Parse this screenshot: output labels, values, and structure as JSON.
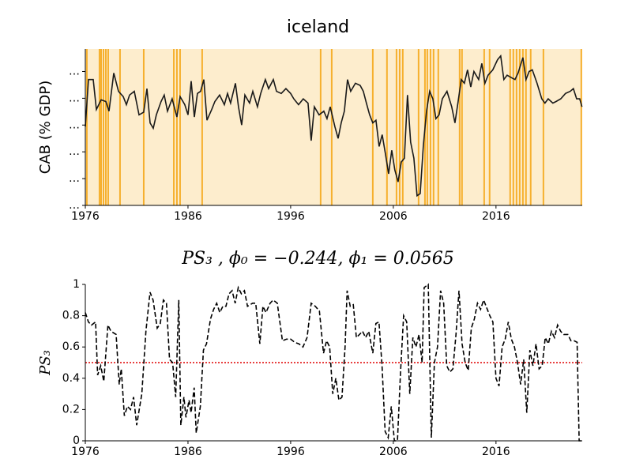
{
  "chart_data": [
    {
      "type": "line",
      "title": "iceland",
      "ylabel": "CAB (% GDP)",
      "color": "#1a1a1a",
      "line_style": "solid",
      "background": "#fdedcd",
      "x": [
        1976.0,
        1976.31,
        1976.77,
        1977.08,
        1977.54,
        1978.0,
        1978.31,
        1978.77,
        1979.23,
        1979.69,
        1980.0,
        1980.31,
        1980.77,
        1981.23,
        1981.69,
        1982.0,
        1982.31,
        1982.62,
        1982.92,
        1983.38,
        1983.69,
        1984.0,
        1984.46,
        1984.92,
        1985.23,
        1985.69,
        1986.0,
        1986.31,
        1986.62,
        1986.92,
        1987.23,
        1987.54,
        1987.85,
        1988.31,
        1988.62,
        1989.08,
        1989.54,
        1989.85,
        1990.15,
        1990.62,
        1990.92,
        1991.23,
        1991.54,
        1992.0,
        1992.31,
        1992.77,
        1993.08,
        1993.54,
        1993.85,
        1994.31,
        1994.62,
        1995.08,
        1995.54,
        1996.0,
        1996.31,
        1996.77,
        1997.23,
        1997.69,
        1998.0,
        1998.31,
        1998.77,
        1999.23,
        1999.54,
        1999.85,
        2000.31,
        2000.62,
        2000.92,
        2001.23,
        2001.54,
        2001.85,
        2002.31,
        2002.77,
        2003.08,
        2003.38,
        2003.69,
        2004.0,
        2004.31,
        2004.62,
        2004.92,
        2005.23,
        2005.54,
        2005.85,
        2006.15,
        2006.46,
        2006.77,
        2007.08,
        2007.38,
        2007.69,
        2008.0,
        2008.31,
        2008.62,
        2008.92,
        2009.23,
        2009.54,
        2009.85,
        2010.15,
        2010.46,
        2010.77,
        2011.23,
        2011.69,
        2012.0,
        2012.31,
        2012.62,
        2012.92,
        2013.23,
        2013.54,
        2013.85,
        2014.31,
        2014.62,
        2014.92,
        2015.23,
        2015.69,
        2016.15,
        2016.46,
        2016.77,
        2017.08,
        2017.54,
        2017.85,
        2018.15,
        2018.62,
        2018.92,
        2019.23,
        2019.54,
        2020.0,
        2020.46,
        2020.77,
        2021.08,
        2021.54,
        2021.85,
        2022.31,
        2022.77,
        2023.23,
        2023.54,
        2023.85,
        2024.15,
        2024.38
      ],
      "values": [
        -10.3,
        -1.5,
        -1.5,
        -7.1,
        -5.3,
        -5.6,
        -7.4,
        -0.3,
        -3.7,
        -4.7,
        -6.2,
        -4.4,
        -3.7,
        -8.1,
        -7.6,
        -3.2,
        -9.6,
        -10.6,
        -8.1,
        -5.6,
        -4.4,
        -7.4,
        -5.1,
        -8.5,
        -4.7,
        -6.2,
        -8.1,
        -1.8,
        -8.5,
        -4.1,
        -3.7,
        -1.5,
        -9.1,
        -7.1,
        -5.6,
        -4.4,
        -6.2,
        -4.1,
        -5.9,
        -2.2,
        -6.6,
        -10.0,
        -4.4,
        -5.9,
        -3.7,
        -6.6,
        -4.1,
        -1.5,
        -3.2,
        -1.5,
        -3.7,
        -4.1,
        -3.2,
        -4.1,
        -5.1,
        -6.2,
        -5.1,
        -5.9,
        -12.9,
        -6.6,
        -8.1,
        -7.4,
        -8.8,
        -6.6,
        -10.3,
        -12.5,
        -9.6,
        -7.4,
        -1.5,
        -3.7,
        -2.2,
        -2.6,
        -3.7,
        -5.9,
        -8.1,
        -9.6,
        -9.1,
        -14.0,
        -11.8,
        -15.4,
        -19.1,
        -14.7,
        -18.4,
        -20.6,
        -16.9,
        -16.2,
        -4.4,
        -13.2,
        -16.2,
        -23.2,
        -22.8,
        -14.0,
        -7.4,
        -3.7,
        -5.1,
        -8.8,
        -8.1,
        -5.1,
        -3.7,
        -6.6,
        -9.6,
        -5.6,
        -1.5,
        -2.2,
        0.3,
        -2.9,
        0.0,
        -1.5,
        1.5,
        -2.2,
        -0.7,
        0.3,
        2.2,
        2.9,
        -1.5,
        -0.7,
        -1.2,
        -1.5,
        -0.3,
        2.6,
        -1.5,
        0.0,
        0.3,
        -2.2,
        -5.1,
        -5.9,
        -5.1,
        -5.9,
        -5.6,
        -5.1,
        -4.1,
        -3.7,
        -3.2,
        -5.1,
        -5.1,
        -6.6
      ],
      "vlines": {
        "color": "#f6b02e",
        "x": [
          1976.15,
          1977.38,
          1977.54,
          1977.77,
          1978.0,
          1978.23,
          1979.38,
          1981.69,
          1984.62,
          1984.92,
          1985.23,
          1987.38,
          1998.92,
          2000.0,
          2004.0,
          2005.38,
          2006.31,
          2006.62,
          2006.92,
          2008.46,
          2009.08,
          2009.31,
          2009.62,
          2009.92,
          2010.38,
          2012.46,
          2012.69,
          2014.85,
          2015.38,
          2017.38,
          2017.69,
          2018.0,
          2018.31,
          2018.62,
          2018.92,
          2019.38,
          2020.62,
          2024.31
        ]
      },
      "xlim": [
        1976,
        2024.4
      ],
      "xticks": [
        1976,
        1986,
        1996,
        2006,
        2016
      ],
      "ylim": [
        -25,
        4.2
      ],
      "yticks": [
        {
          "value": -25,
          "label": "…"
        },
        {
          "value": -20,
          "label": "…"
        },
        {
          "value": -15,
          "label": "…"
        },
        {
          "value": -10,
          "label": "…"
        },
        {
          "value": -5,
          "label": "…"
        },
        {
          "value": 0,
          "label": "…"
        }
      ]
    },
    {
      "type": "line",
      "title": "PS₃ , ϕ₀ = −0.244, ϕ₁ = 0.0565",
      "ylabel": "PS₃",
      "color": "#000000",
      "line_style": "dashed",
      "x": [
        1976.0,
        1976.3,
        1976.6,
        1977.0,
        1977.2,
        1977.5,
        1977.8,
        1978.2,
        1978.5,
        1979.0,
        1979.3,
        1979.5,
        1979.8,
        1980.1,
        1980.4,
        1980.7,
        1981.0,
        1981.5,
        1981.9,
        1982.3,
        1982.6,
        1983.0,
        1983.3,
        1983.6,
        1983.9,
        1984.2,
        1984.5,
        1984.8,
        1985.1,
        1985.3,
        1985.6,
        1985.8,
        1986.1,
        1986.3,
        1986.6,
        1986.8,
        1987.2,
        1987.5,
        1987.8,
        1988.2,
        1988.5,
        1988.8,
        1989.1,
        1989.4,
        1989.7,
        1990.0,
        1990.3,
        1990.6,
        1990.9,
        1991.2,
        1991.5,
        1991.8,
        1992.3,
        1992.6,
        1993.0,
        1993.3,
        1993.6,
        1994.0,
        1994.3,
        1994.7,
        1995.2,
        1995.6,
        1996.0,
        1996.4,
        1996.8,
        1997.2,
        1997.6,
        1998.0,
        1998.4,
        1998.8,
        1999.2,
        1999.5,
        1999.8,
        2000.1,
        2000.4,
        2000.7,
        2001.0,
        2001.3,
        2001.5,
        2001.8,
        2002.1,
        2002.4,
        2002.7,
        2003.0,
        2003.3,
        2003.6,
        2004.0,
        2004.3,
        2004.6,
        2004.9,
        2005.2,
        2005.5,
        2005.8,
        2006.1,
        2006.4,
        2006.7,
        2007.0,
        2007.3,
        2007.6,
        2007.9,
        2008.2,
        2008.5,
        2008.8,
        2009.0,
        2009.4,
        2009.7,
        2010.0,
        2010.3,
        2010.6,
        2010.9,
        2011.2,
        2011.5,
        2011.8,
        2012.1,
        2012.4,
        2012.7,
        2013.0,
        2013.3,
        2013.6,
        2013.9,
        2014.2,
        2014.5,
        2014.8,
        2015.1,
        2015.4,
        2015.7,
        2016.0,
        2016.3,
        2016.6,
        2016.9,
        2017.2,
        2017.5,
        2017.8,
        2018.1,
        2018.4,
        2018.7,
        2019.0,
        2019.3,
        2019.6,
        2019.9,
        2020.2,
        2020.5,
        2020.8,
        2021.1,
        2021.4,
        2021.7,
        2022.0,
        2022.3,
        2022.6,
        2023.0,
        2023.3,
        2023.6,
        2023.9,
        2024.1,
        2024.38
      ],
      "values": [
        0.82,
        0.76,
        0.74,
        0.76,
        0.42,
        0.48,
        0.38,
        0.74,
        0.7,
        0.68,
        0.36,
        0.46,
        0.16,
        0.22,
        0.2,
        0.28,
        0.1,
        0.3,
        0.7,
        0.95,
        0.9,
        0.72,
        0.75,
        0.9,
        0.88,
        0.52,
        0.5,
        0.28,
        0.9,
        0.1,
        0.28,
        0.15,
        0.26,
        0.18,
        0.34,
        0.05,
        0.22,
        0.58,
        0.62,
        0.78,
        0.84,
        0.88,
        0.82,
        0.86,
        0.86,
        0.94,
        0.96,
        0.88,
        0.98,
        0.94,
        0.96,
        0.86,
        0.88,
        0.88,
        0.62,
        0.86,
        0.82,
        0.88,
        0.9,
        0.88,
        0.64,
        0.65,
        0.65,
        0.63,
        0.62,
        0.6,
        0.66,
        0.88,
        0.86,
        0.83,
        0.56,
        0.64,
        0.6,
        0.3,
        0.4,
        0.26,
        0.28,
        0.6,
        0.96,
        0.86,
        0.87,
        0.66,
        0.68,
        0.7,
        0.66,
        0.7,
        0.56,
        0.75,
        0.76,
        0.48,
        0.06,
        0.02,
        0.22,
        0.0,
        0.0,
        0.44,
        0.8,
        0.76,
        0.3,
        0.66,
        0.6,
        0.68,
        0.5,
        0.98,
        1.0,
        0.02,
        0.5,
        0.6,
        0.96,
        0.88,
        0.48,
        0.44,
        0.46,
        0.68,
        0.96,
        0.62,
        0.5,
        0.45,
        0.72,
        0.78,
        0.88,
        0.84,
        0.9,
        0.85,
        0.8,
        0.76,
        0.4,
        0.35,
        0.6,
        0.65,
        0.76,
        0.65,
        0.6,
        0.5,
        0.36,
        0.52,
        0.18,
        0.58,
        0.48,
        0.62,
        0.46,
        0.48,
        0.66,
        0.62,
        0.7,
        0.66,
        0.74,
        0.7,
        0.68,
        0.68,
        0.64,
        0.64,
        0.63,
        0.0,
        0.0
      ],
      "hline": {
        "y": 0.5,
        "color": "#e00000"
      },
      "xlim": [
        1976,
        2024.4
      ],
      "xticks": [
        1976,
        1986,
        1996,
        2006,
        2016
      ],
      "ylim": [
        0,
        1
      ],
      "yticks": [
        0,
        {
          "value": 0.2,
          "label": "0.2"
        },
        {
          "value": 0.4,
          "label": "0.4"
        },
        {
          "value": 0.6,
          "label": "0.6"
        },
        {
          "value": 0.8,
          "label": "0.8"
        },
        1
      ]
    }
  ]
}
